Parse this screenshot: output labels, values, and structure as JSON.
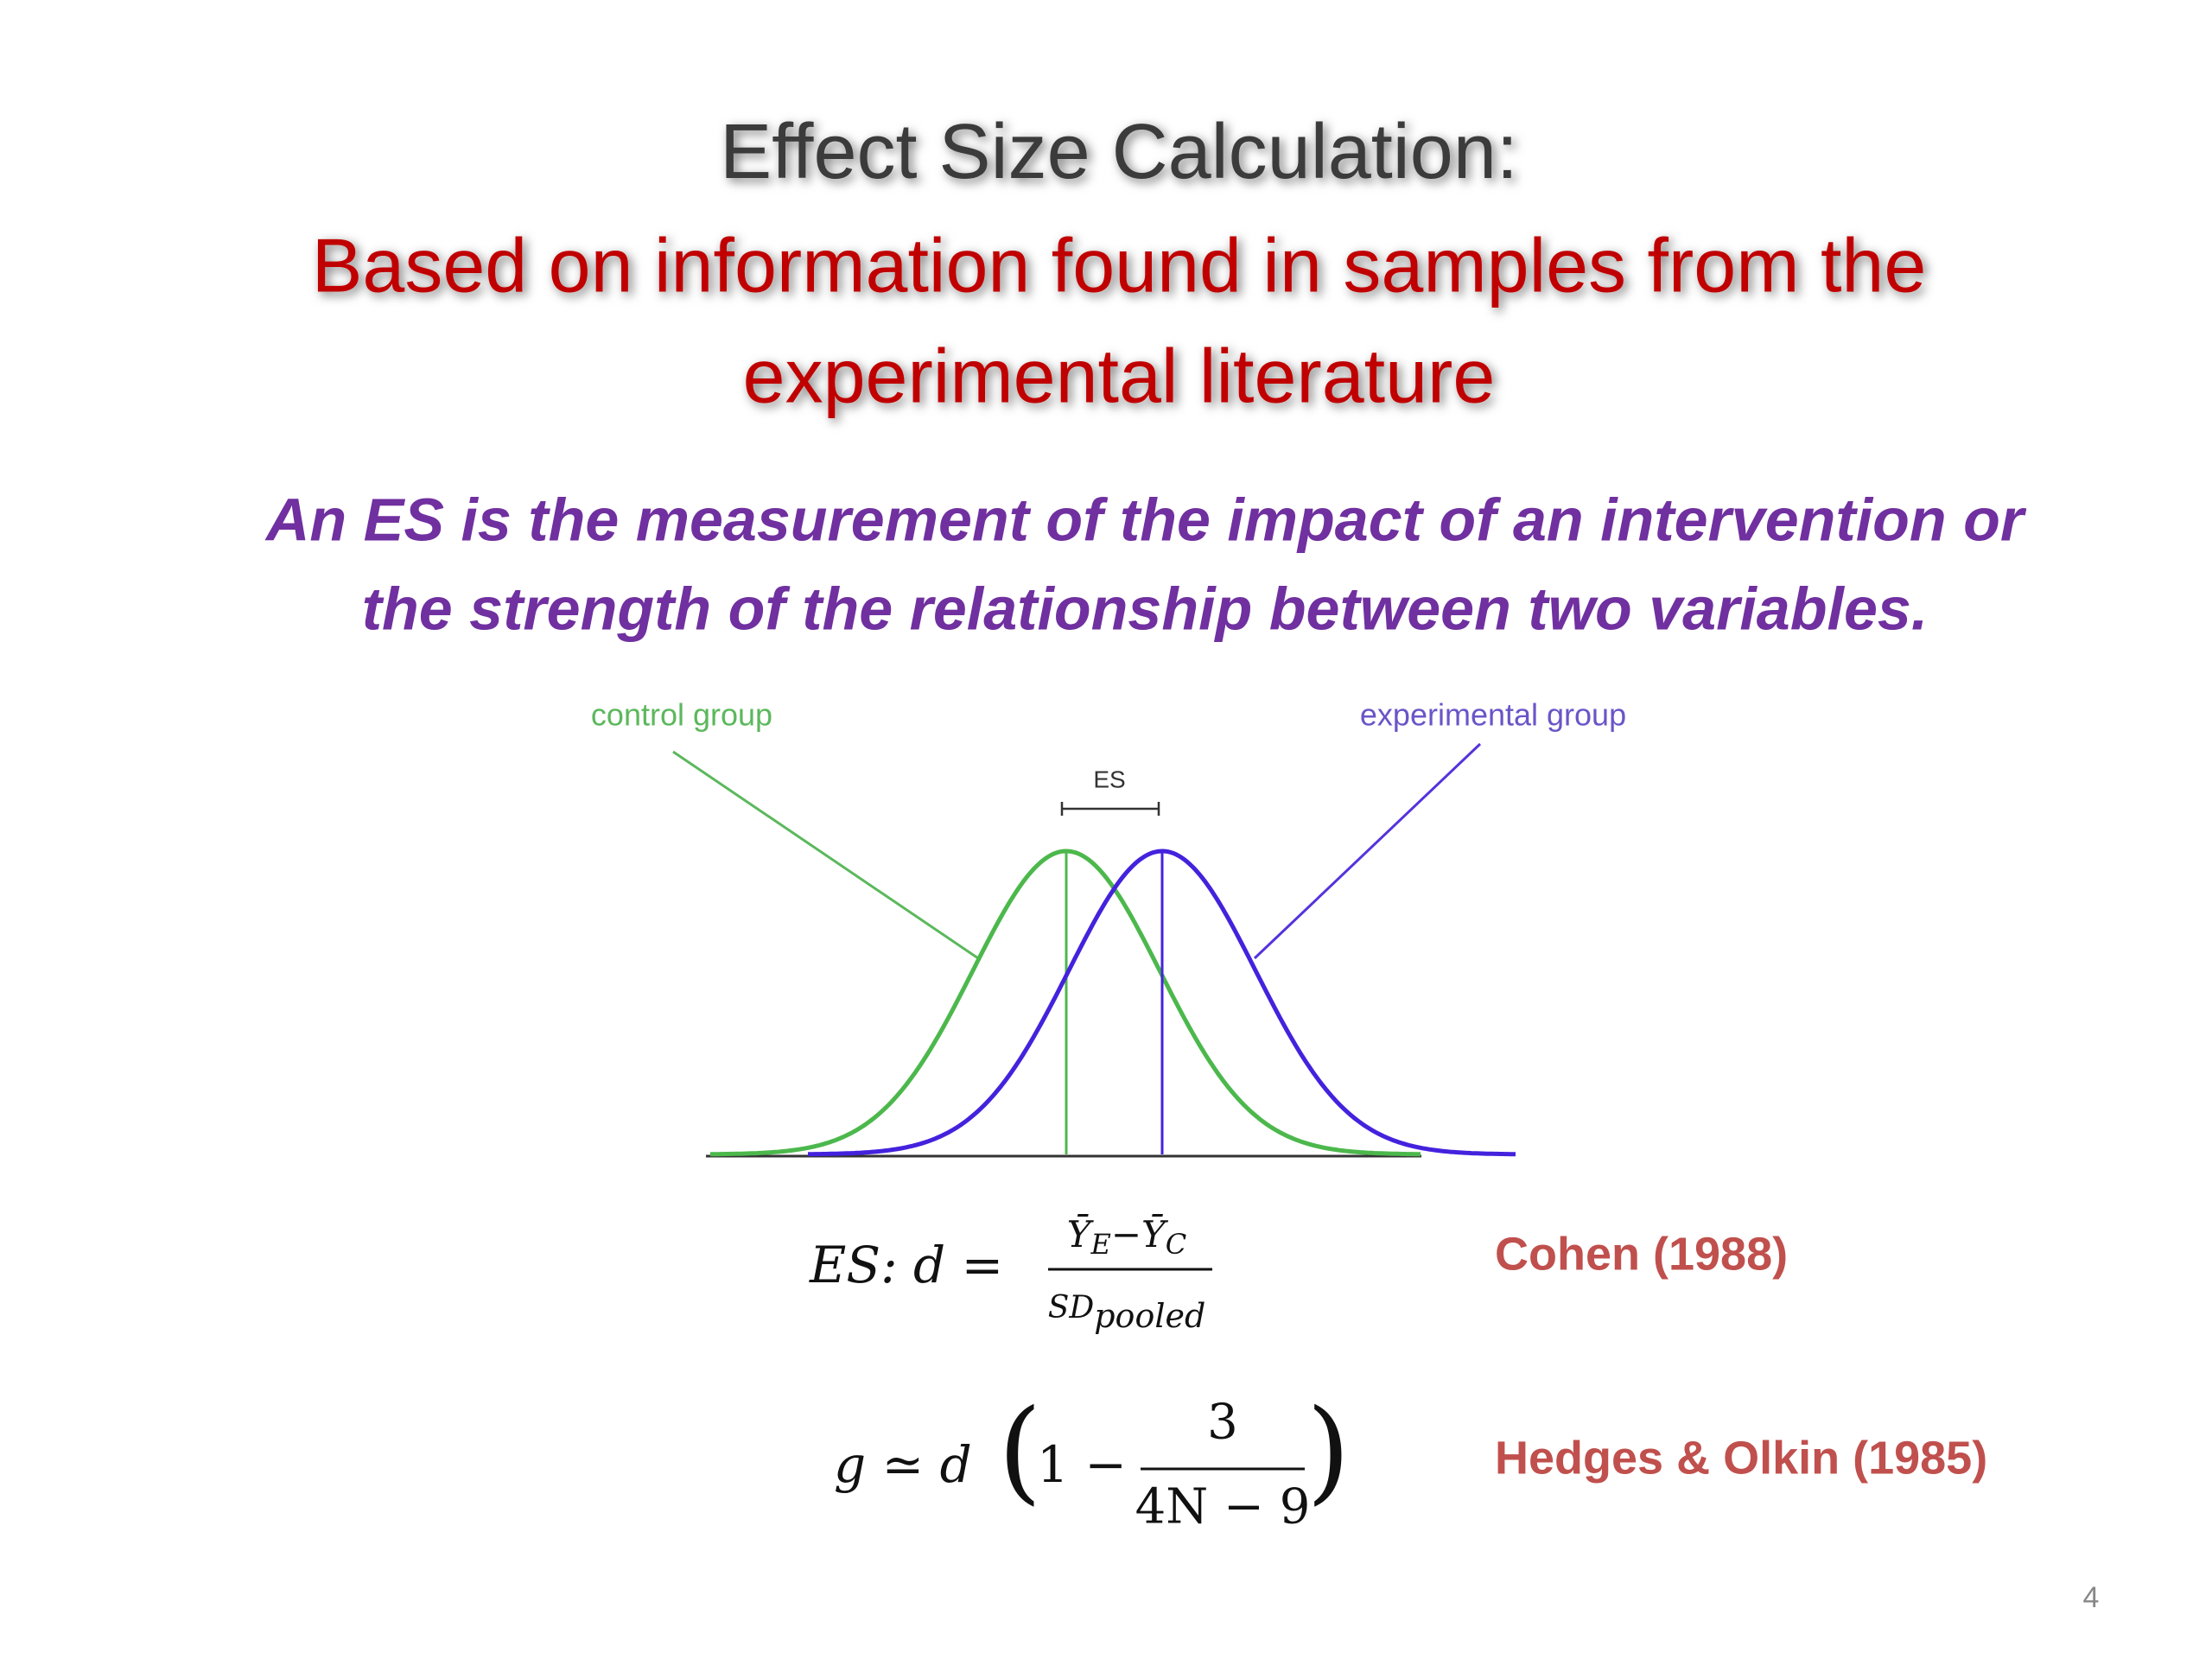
{
  "title": {
    "heading": "Effect Size Calculation:",
    "subtitle": [
      "Based on information found in samples from the",
      "experimental literature"
    ]
  },
  "definition": [
    "An ES is the measurement of the impact of an intervention or",
    "the strength of the relationship between two variables."
  ],
  "figure": {
    "control_label": "control group",
    "experimental_label": "experimental group",
    "es_label": "ES"
  },
  "formulas": [
    {
      "lhs": "ES: d  =",
      "numerator": [
        "Ȳ",
        "E",
        "−Ȳ",
        "C"
      ],
      "denominator": [
        "SD",
        "pooled"
      ],
      "citation": "Cohen (1988)"
    },
    {
      "lhs": "g  ≃  d",
      "open": "(",
      "lead": "1 −",
      "numerator": "3",
      "denominator": "4N − 9",
      "close": ")",
      "citation": "Hedges & Olkin (1985)"
    }
  ],
  "page_number": "4"
}
